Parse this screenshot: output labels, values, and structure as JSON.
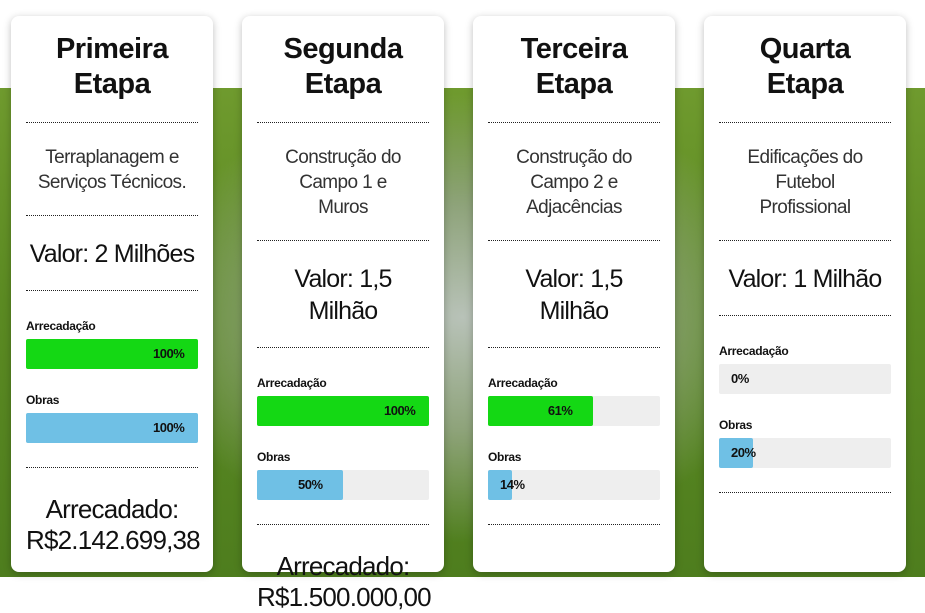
{
  "colors": {
    "arrecadacao": "#14d814",
    "obras": "#6fc0e5",
    "track": "#eeeeee"
  },
  "cards": [
    {
      "title": "Primeira Etapa",
      "desc": "Terraplanagem e Serviços Técnicos.",
      "valor": "Valor: 2 Milhões",
      "arrecadacao_label": "Arrecadação",
      "arrecadacao": 100,
      "arrecadacao_text": "100%",
      "obras_label": "Obras",
      "obras": 100,
      "obras_text": "100%",
      "arrecadado_label": "Arrecadado:",
      "arrecadado": "R$2.142.699,38"
    },
    {
      "title": "Segunda Etapa",
      "desc": "Construção do Campo 1 e Muros",
      "valor": "Valor: 1,5 Milhão",
      "arrecadacao_label": "Arrecadação",
      "arrecadacao": 100,
      "arrecadacao_text": "100%",
      "obras_label": "Obras",
      "obras": 50,
      "obras_text": "50%",
      "arrecadado_label": "Arrecadado:",
      "arrecadado": "R$1.500.000,00"
    },
    {
      "title": "Terceira Etapa",
      "desc": "Construção do Campo 2 e Adjacências",
      "valor": "Valor: 1,5 Milhão",
      "arrecadacao_label": "Arrecadação",
      "arrecadacao": 61,
      "arrecadacao_text": "61%",
      "obras_label": "Obras",
      "obras": 14,
      "obras_text": "14%"
    },
    {
      "title": "Quarta Etapa",
      "desc": "Edificações do Futebol Profissional",
      "valor": "Valor: 1 Milhão",
      "arrecadacao_label": "Arrecadação",
      "arrecadacao": 0,
      "arrecadacao_text": "0%",
      "obras_label": "Obras",
      "obras": 20,
      "obras_text": "20%"
    }
  ]
}
